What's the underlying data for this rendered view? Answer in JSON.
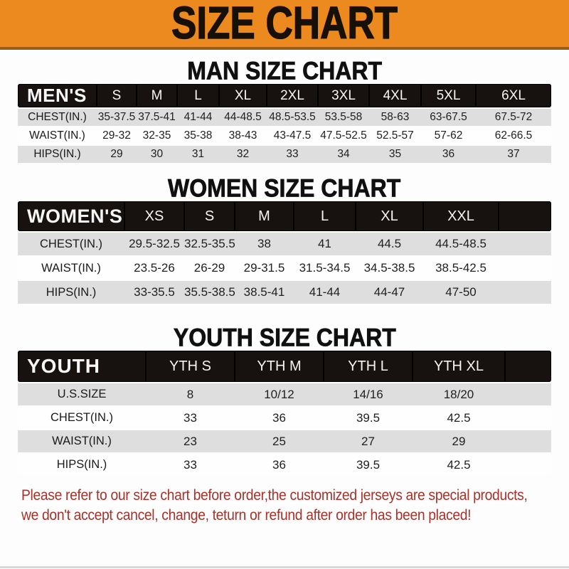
{
  "banner": {
    "title": "SIZE CHART"
  },
  "colors": {
    "banner_bg": "#ec8a1f",
    "banner_edge": "#9c5a12",
    "bar_bg": "#17110f",
    "stripe": "#dedede",
    "row_text": "#1f1f1f",
    "footer_text": "#a5332b"
  },
  "tables": [
    {
      "id": "men",
      "heading": "MAN SIZE CHART",
      "header_label": "MEN'S",
      "columns": [
        "S",
        "M",
        "L",
        "XL",
        "2XL",
        "3XL",
        "4XL",
        "5XL",
        "6XL"
      ],
      "rows": [
        {
          "label": "CHEST(IN.)",
          "values": [
            "35-37.5",
            "37.5-41",
            "41-44",
            "44-48.5",
            "48.5-53.5",
            "53.5-58",
            "58-63",
            "63-67.5",
            "67.5-72"
          ]
        },
        {
          "label": "WAIST(IN.)",
          "values": [
            "29-32",
            "32-35",
            "35-38",
            "38-43",
            "43-47.5",
            "47.5-52.5",
            "52.5-57",
            "57-62",
            "62-66.5"
          ]
        },
        {
          "label": "HIPS(IN.)",
          "values": [
            "29",
            "30",
            "31",
            "32",
            "33",
            "34",
            "35",
            "36",
            "37"
          ]
        }
      ]
    },
    {
      "id": "women",
      "heading": "WOMEN SIZE CHART",
      "header_label": "WOMEN'S",
      "columns": [
        "XS",
        "S",
        "M",
        "L",
        "XL",
        "XXL"
      ],
      "rows": [
        {
          "label": "CHEST(IN.)",
          "values": [
            "29.5-32.5",
            "32.5-35.5",
            "38",
            "41",
            "44.5",
            "44.5-48.5"
          ]
        },
        {
          "label": "WAIST(IN.)",
          "values": [
            "23.5-26",
            "26-29",
            "29-31.5",
            "31.5-34.5",
            "34.5-38.5",
            "38.5-42.5"
          ]
        },
        {
          "label": "HIPS(IN.)",
          "values": [
            "33-35.5",
            "35.5-38.5",
            "38.5-41",
            "41-44",
            "44-47",
            "47-50"
          ]
        }
      ]
    },
    {
      "id": "youth",
      "heading": "YOUTH SIZE CHART",
      "header_label": "YOUTH",
      "columns": [
        "YTH S",
        "YTH M",
        "YTH L",
        "YTH XL"
      ],
      "rows": [
        {
          "label": "U.S.SIZE",
          "values": [
            "8",
            "10/12",
            "14/16",
            "18/20"
          ]
        },
        {
          "label": "CHEST(IN.)",
          "values": [
            "33",
            "36",
            "39.5",
            "42.5"
          ]
        },
        {
          "label": "WAIST(IN.)",
          "values": [
            "23",
            "25",
            "27",
            "29"
          ]
        },
        {
          "label": "HIPS(IN.)",
          "values": [
            "33",
            "36",
            "39.5",
            "42.5"
          ]
        }
      ]
    }
  ],
  "footer": {
    "line1": "Please refer to our size chart before order,the customized jerseys are special products,",
    "line2": "we don't accept cancel, change, teturn or refund after order has been placed!"
  }
}
